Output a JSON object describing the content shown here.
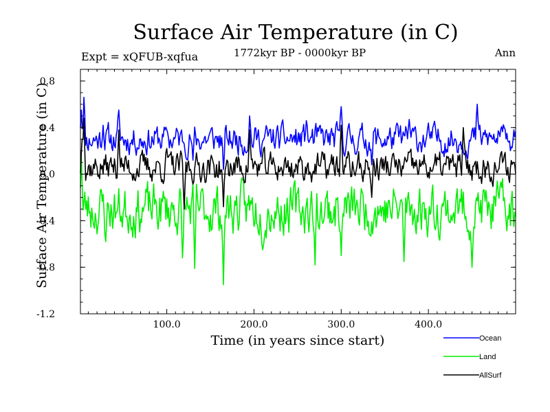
{
  "chart_data": {
    "type": "line",
    "title": "Surface Air Temperature (in C)",
    "subtitle": "1772kyr BP - 0000kyr BP",
    "left_label": "Expt = xQFUB-xqfua",
    "right_label": "Ann",
    "xlabel": "Time (in years since start)",
    "ylabel": "Surface Air Temperature (in C)",
    "xlim": [
      1,
      500
    ],
    "ylim": [
      -1.2,
      0.9
    ],
    "x_ticks": [
      100,
      200,
      300,
      400
    ],
    "x_tick_labels": [
      "100.0",
      "200.0",
      "300.0",
      "400.0"
    ],
    "y_ticks": [
      -1.2,
      -0.8,
      -0.4,
      0.0,
      0.4,
      0.8
    ],
    "y_tick_labels": [
      "-1.2",
      "-0.8",
      "-0.4",
      "0.0",
      "0.4",
      "0.8"
    ],
    "zero_line": 0.0,
    "legend_position": "bottom-right",
    "series": [
      {
        "name": "Ocean",
        "color": "#0000ff",
        "base": 0.3,
        "noise": 0.1,
        "seed": 11,
        "anchors": [
          [
            2,
            0.55
          ],
          [
            5,
            0.66
          ],
          [
            27,
            0.42
          ],
          [
            45,
            0.55
          ],
          [
            100,
            0.38
          ],
          [
            130,
            0.12
          ],
          [
            165,
            0.04
          ],
          [
            195,
            0.5
          ],
          [
            260,
            0.46
          ],
          [
            300,
            0.58
          ],
          [
            335,
            0.08
          ],
          [
            378,
            0.47
          ],
          [
            456,
            0.6
          ],
          [
            490,
            0.35
          ],
          [
            498,
            0.38
          ]
        ],
        "values": []
      },
      {
        "name": "Land",
        "color": "#00ee00",
        "base": -0.3,
        "noise": 0.17,
        "seed": 23,
        "anchors": [
          [
            2,
            0.15
          ],
          [
            30,
            -0.58
          ],
          [
            118,
            -0.72
          ],
          [
            132,
            -0.81
          ],
          [
            165,
            -0.95
          ],
          [
            210,
            -0.65
          ],
          [
            270,
            -0.78
          ],
          [
            300,
            -0.7
          ],
          [
            372,
            -0.75
          ],
          [
            450,
            -0.8
          ],
          [
            498,
            -0.45
          ]
        ],
        "values": []
      },
      {
        "name": "AllSurf",
        "color": "#000000",
        "base": 0.06,
        "noise": 0.1,
        "seed": 37,
        "anchors": [
          [
            3,
            0.3
          ],
          [
            5,
            0.48
          ],
          [
            45,
            0.38
          ],
          [
            100,
            0.22
          ],
          [
            120,
            -0.3
          ],
          [
            165,
            -0.28
          ],
          [
            195,
            0.38
          ],
          [
            300,
            0.42
          ],
          [
            335,
            -0.2
          ],
          [
            440,
            0.4
          ],
          [
            498,
            0.1
          ]
        ],
        "values": []
      }
    ]
  }
}
